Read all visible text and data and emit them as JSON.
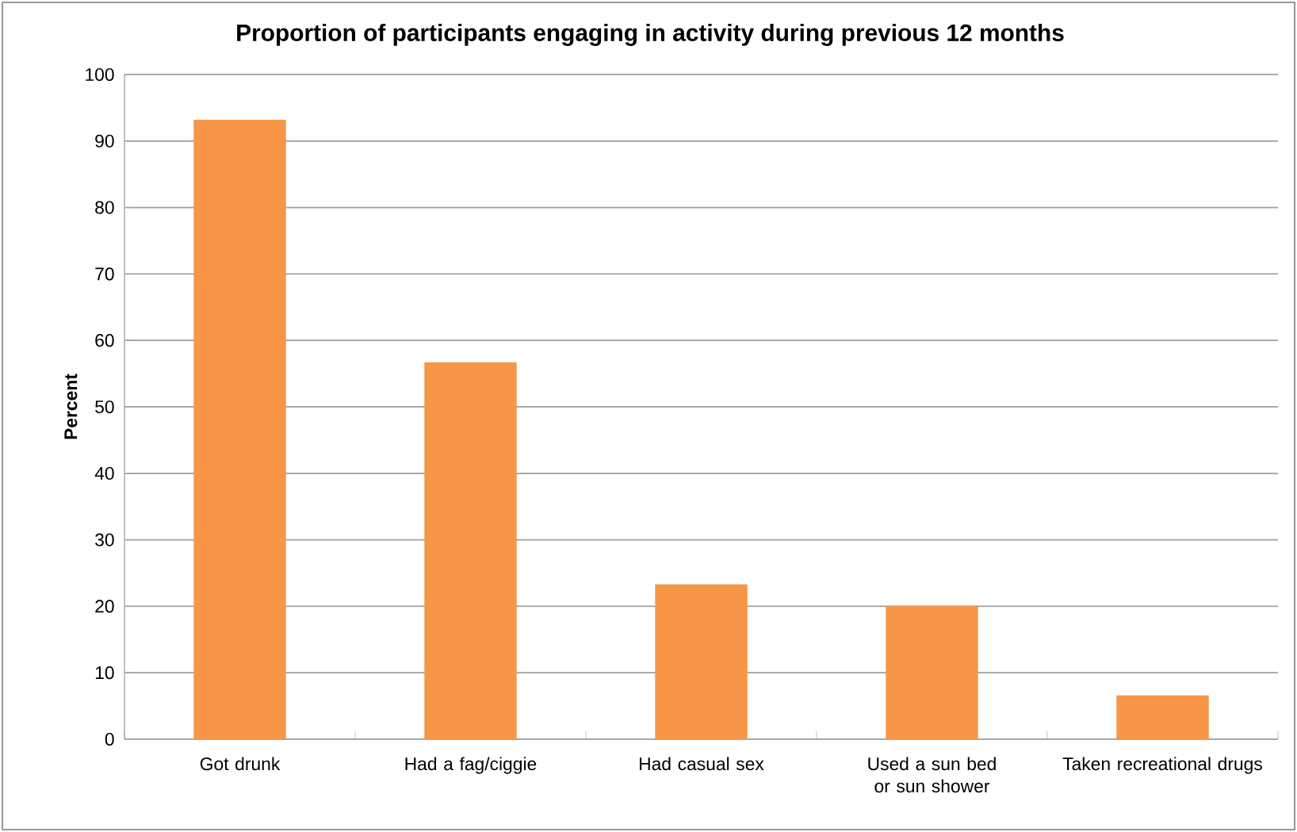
{
  "chart_data": {
    "type": "bar",
    "title": "Proportion of participants engaging in activity during previous 12 months",
    "ylabel": "Percent",
    "categories": [
      "Got drunk",
      "Had a fag/ciggie",
      "Had casual sex",
      "Used a sun bed or sun shower",
      "Taken recreational drugs"
    ],
    "values": [
      93.2,
      56.7,
      23.3,
      20,
      6.6
    ],
    "color": "#f79646",
    "ylim": [
      0,
      100
    ],
    "yticks": [
      0,
      10,
      20,
      30,
      40,
      50,
      60,
      70,
      80,
      90,
      100
    ],
    "grid": "y"
  }
}
